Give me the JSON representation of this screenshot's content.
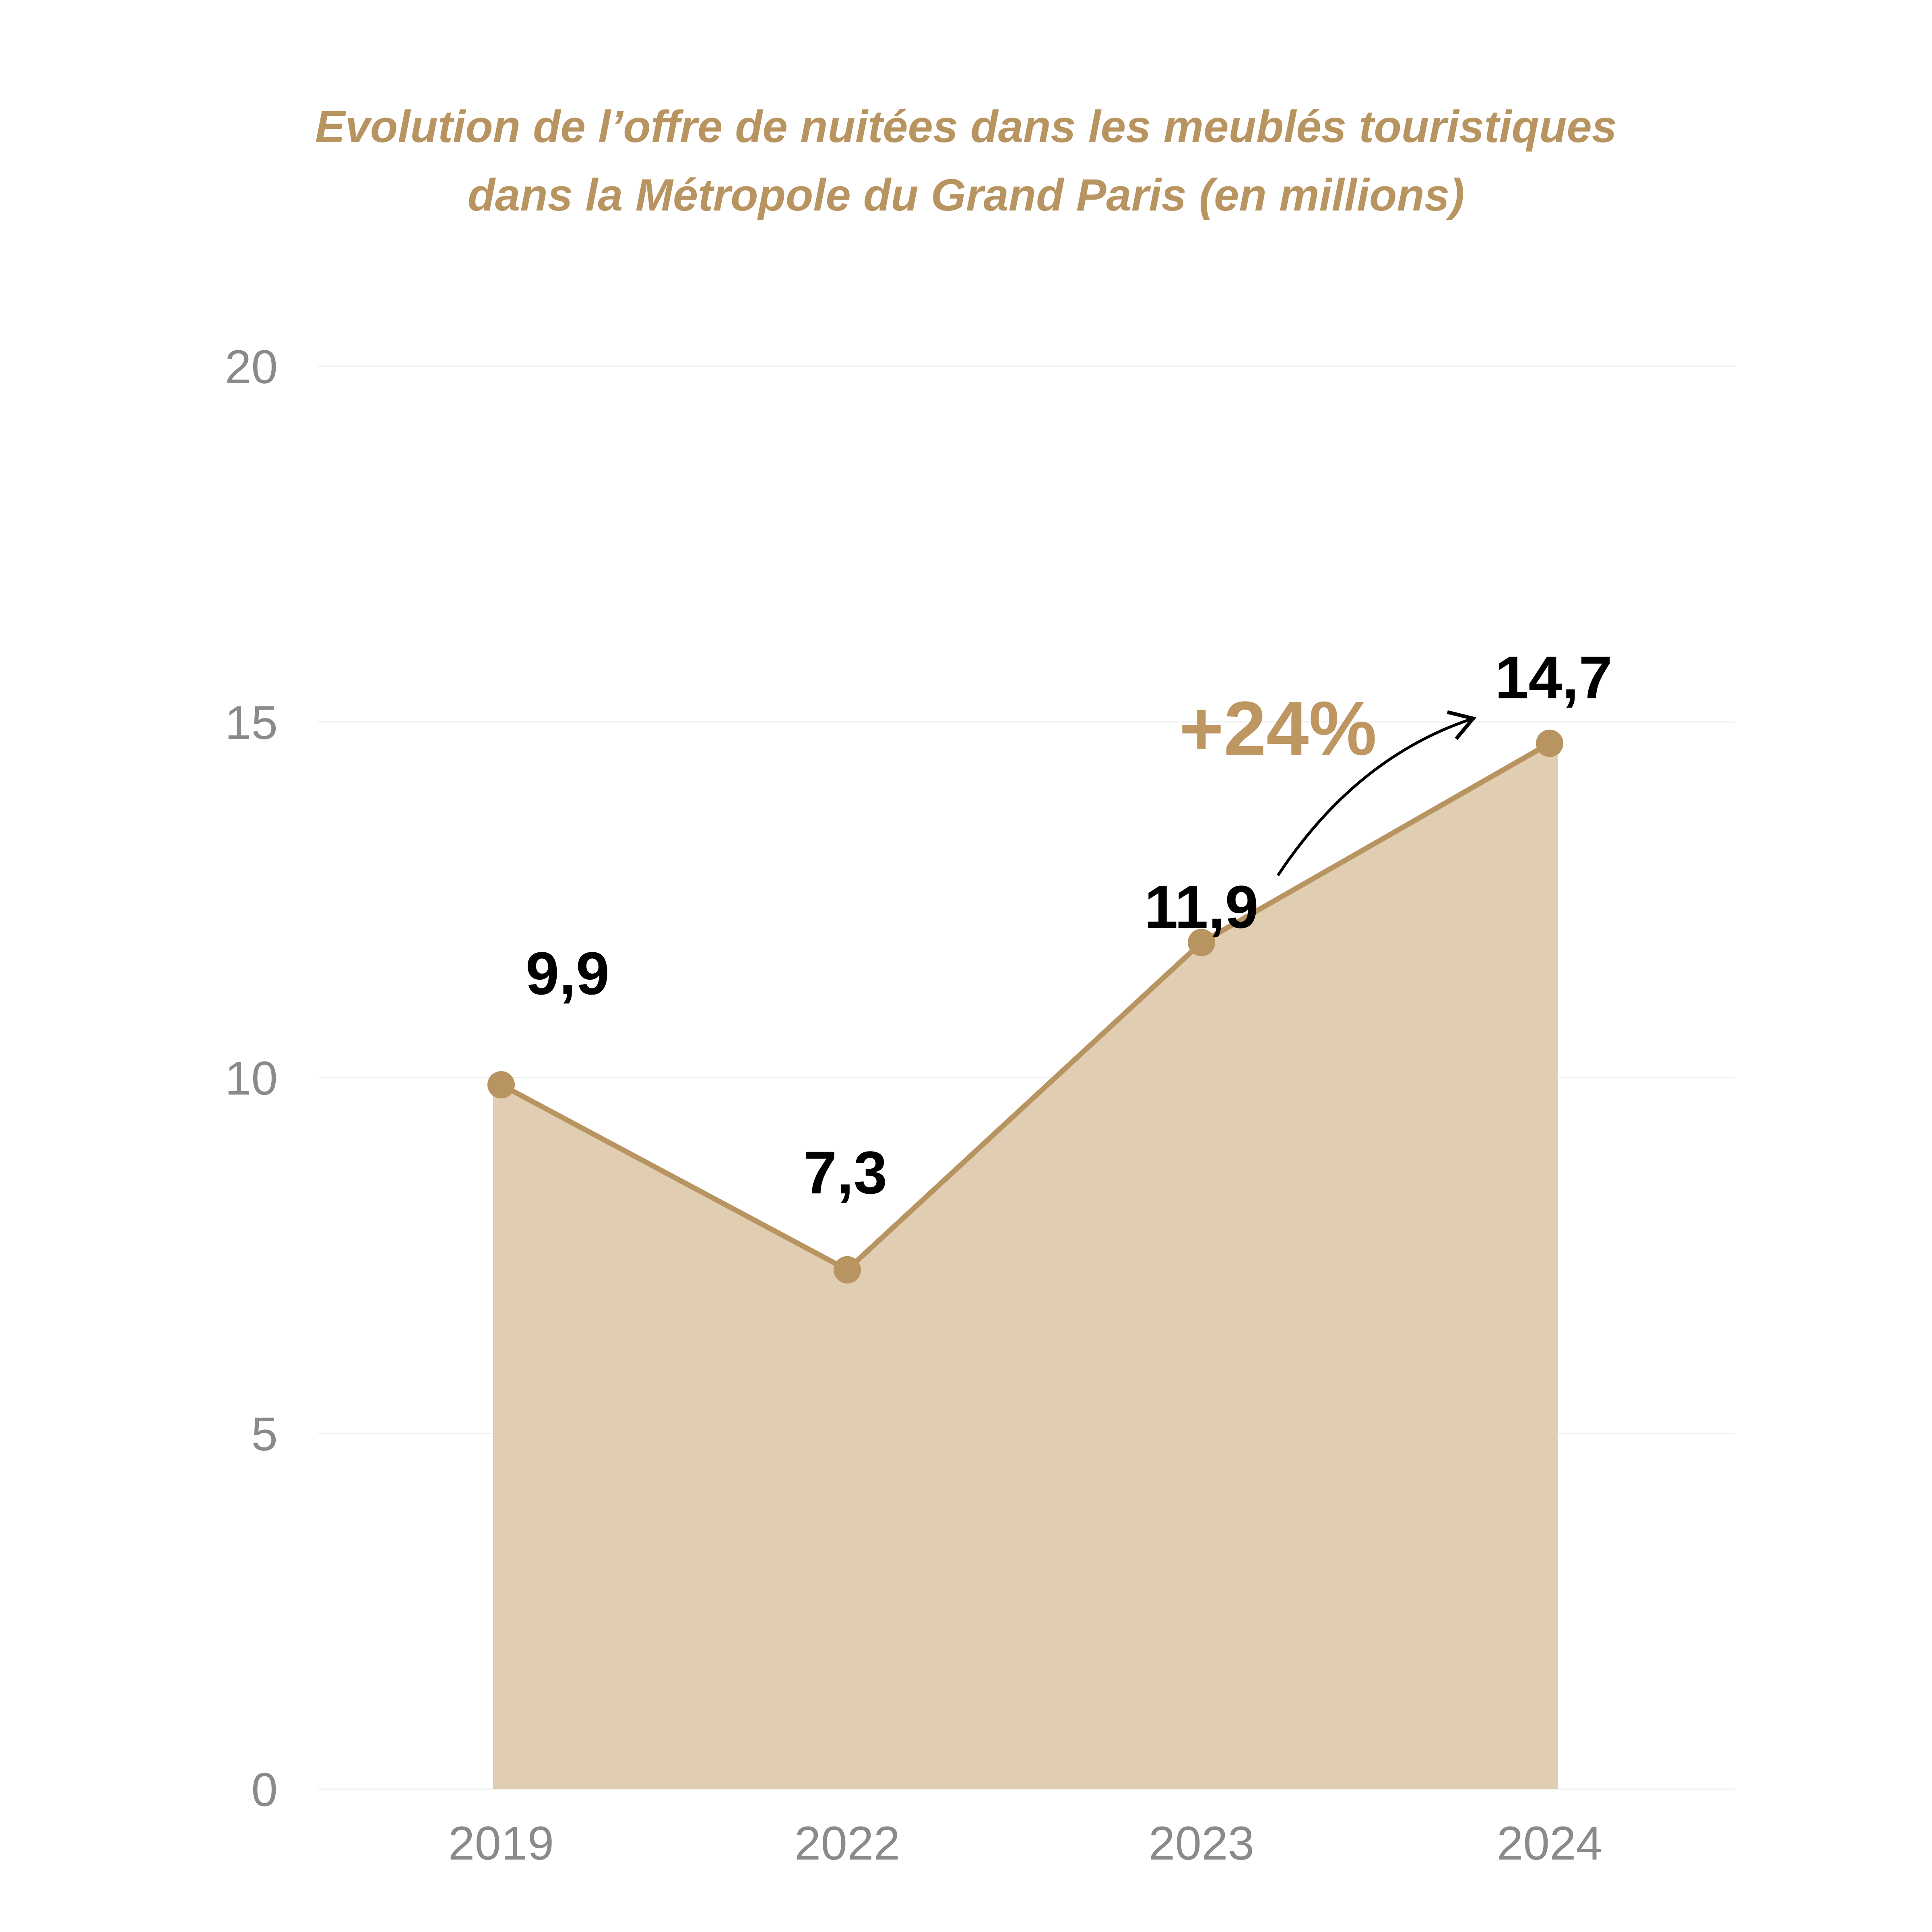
{
  "chart_data": {
    "type": "area",
    "title": [
      "Evolution de l’offre de nuitées dans les meublés touristiques",
      "dans la Métropole du Grand Paris (en millions)"
    ],
    "categories": [
      "2019",
      "2022",
      "2023",
      "2024"
    ],
    "series": [
      {
        "name": "Nuitées (millions)",
        "values": [
          9.9,
          7.3,
          11.9,
          14.7
        ]
      }
    ],
    "data_labels": [
      "9,9",
      "7,3",
      "11,9",
      "14,7"
    ],
    "y_ticks": [
      "0",
      "5",
      "10",
      "15",
      "20"
    ],
    "ylim": [
      0,
      20
    ],
    "xlabel": "",
    "ylabel": "",
    "grid": true,
    "annotation": {
      "text": "+24%",
      "from": "2023",
      "to": "2024"
    },
    "colors": {
      "line": "#b89461",
      "fill": "#e0cdb2",
      "annotation": "#bd9662",
      "title": "#b89461",
      "tick": "#8a8a8a",
      "grid": "#f0f0f0"
    }
  }
}
